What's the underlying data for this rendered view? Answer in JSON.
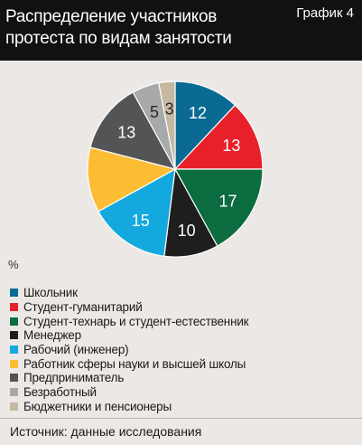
{
  "header": {
    "title": "Распределение участников\nпротеста по видам занятости",
    "chart_number": "График 4"
  },
  "unit": "%",
  "source": "Источник: данные исследования",
  "chart_data": {
    "type": "pie",
    "start": "12 o'clock",
    "direction": "clockwise",
    "slices": [
      {
        "label": "Школьник",
        "value": 12,
        "data_label": "12",
        "color": "#0a6a94",
        "text_color": "#ffffff"
      },
      {
        "label": "Студент-гуманитарий",
        "value": 13,
        "data_label": "13",
        "color": "#e8202a",
        "text_color": "#ffffff"
      },
      {
        "label": "Студент-технарь  и студент-естественник",
        "value": 17,
        "data_label": "17",
        "color": "#0b6d3f",
        "text_color": "#ffffff"
      },
      {
        "label": "Менеджер",
        "value": 10,
        "data_label": "10",
        "color": "#1e1e1e",
        "text_color": "#ffffff"
      },
      {
        "label": "Рабочий (инженер)",
        "value": 15,
        "data_label": "15",
        "color": "#13a9de",
        "text_color": "#ffffff"
      },
      {
        "label": "Работник сферы науки и высшей школы",
        "value": 12,
        "data_label": "",
        "color": "#fcbd35",
        "text_color": "#ffffff"
      },
      {
        "label": "Предприниматель",
        "value": 13,
        "data_label": "13",
        "color": "#535455",
        "text_color": "#ffffff"
      },
      {
        "label": "Безработный",
        "value": 5,
        "data_label": "5",
        "color": "#a8a9ab",
        "text_color": "#2a2a2a"
      },
      {
        "label": "Бюджетники и пенсионеры",
        "value": 3,
        "data_label": "3",
        "color": "#c6b8a1",
        "text_color": "#2a2a2a"
      }
    ]
  }
}
